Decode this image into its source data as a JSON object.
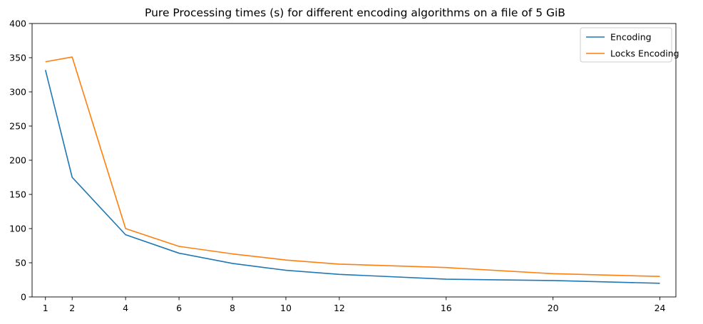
{
  "chart_data": {
    "type": "line",
    "title": "Pure Processing times (s) for different encoding algorithms on a file of 5 GiB",
    "xlabel": "",
    "ylabel": "",
    "x": [
      1,
      2,
      4,
      6,
      8,
      10,
      12,
      16,
      20,
      24
    ],
    "xticks": [
      1,
      2,
      4,
      6,
      8,
      10,
      12,
      16,
      20,
      24
    ],
    "yticks": [
      0,
      50,
      100,
      150,
      200,
      250,
      300,
      350,
      400
    ],
    "xlim": [
      0.5,
      24.6
    ],
    "ylim": [
      0,
      400
    ],
    "grid": false,
    "legend_position": "top-right",
    "series": [
      {
        "name": "Encoding",
        "color": "#1f77b4",
        "values": [
          332,
          175,
          91,
          64,
          49,
          39,
          33,
          26,
          24,
          20
        ]
      },
      {
        "name": "Locks Encoding",
        "color": "#ff7f0e",
        "values": [
          344,
          351,
          100,
          74,
          63,
          54,
          48,
          43,
          34,
          30
        ]
      }
    ]
  }
}
